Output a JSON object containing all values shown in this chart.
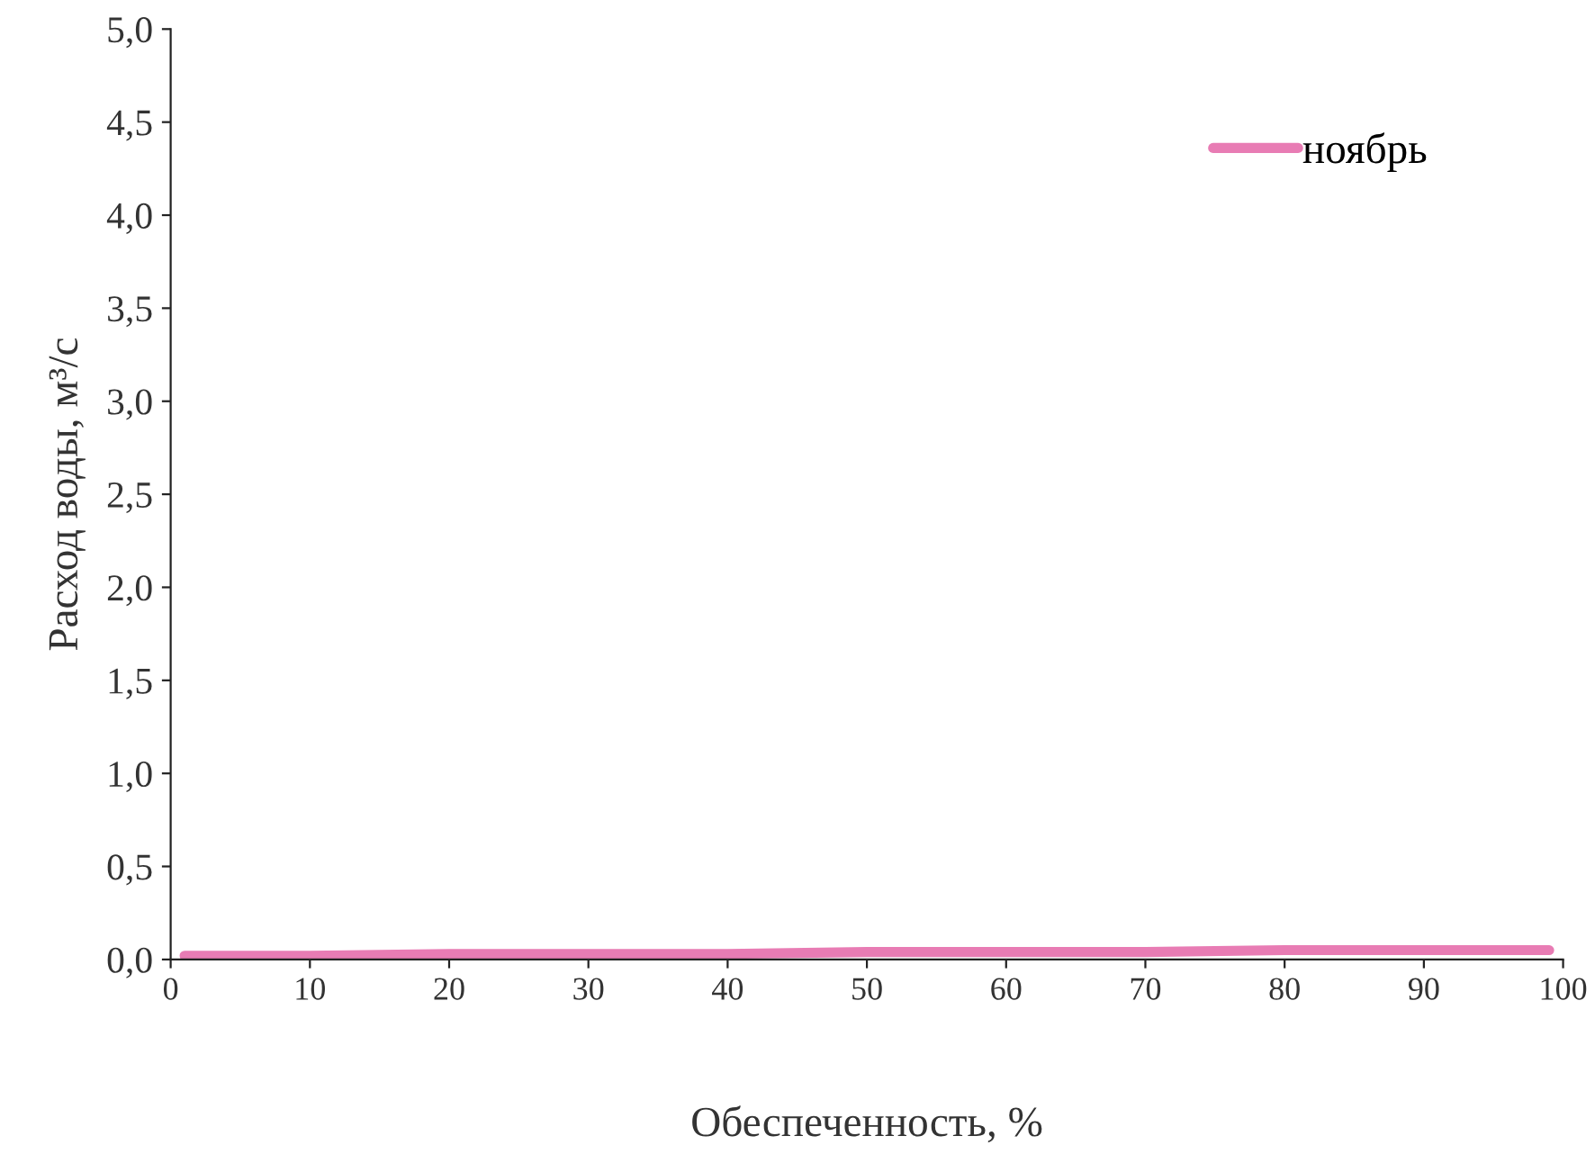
{
  "chart_data": {
    "type": "line",
    "xlabel": "Обеспеченность, %",
    "ylabel": "Расход воды, м³/с",
    "series": [
      {
        "name": "ноябрь",
        "color": "#e87cb4",
        "x": [
          1,
          10,
          20,
          30,
          40,
          50,
          60,
          70,
          80,
          90,
          99
        ],
        "values": [
          0.02,
          0.02,
          0.03,
          0.03,
          0.03,
          0.04,
          0.04,
          0.04,
          0.05,
          0.05,
          0.05
        ]
      }
    ],
    "xlim": [
      0,
      100
    ],
    "xticks": [
      0,
      10,
      20,
      30,
      40,
      50,
      60,
      70,
      80,
      90,
      100
    ],
    "ylim": [
      0,
      5
    ],
    "yticks": [
      {
        "value": 0,
        "label": "0,0"
      },
      {
        "value": 0.5,
        "label": "0,5"
      },
      {
        "value": 1,
        "label": "1,0"
      },
      {
        "value": 1.5,
        "label": "1,5"
      },
      {
        "value": 2,
        "label": "2,0"
      },
      {
        "value": 2.5,
        "label": "2,5"
      },
      {
        "value": 3,
        "label": "3,0"
      },
      {
        "value": 3.5,
        "label": "3,5"
      },
      {
        "value": 4,
        "label": "4,0"
      },
      {
        "value": 4.5,
        "label": "4,5"
      },
      {
        "value": 5,
        "label": "5,0"
      }
    ],
    "legend": "top right",
    "grid": false,
    "line_style": "solid",
    "marker": "none"
  }
}
